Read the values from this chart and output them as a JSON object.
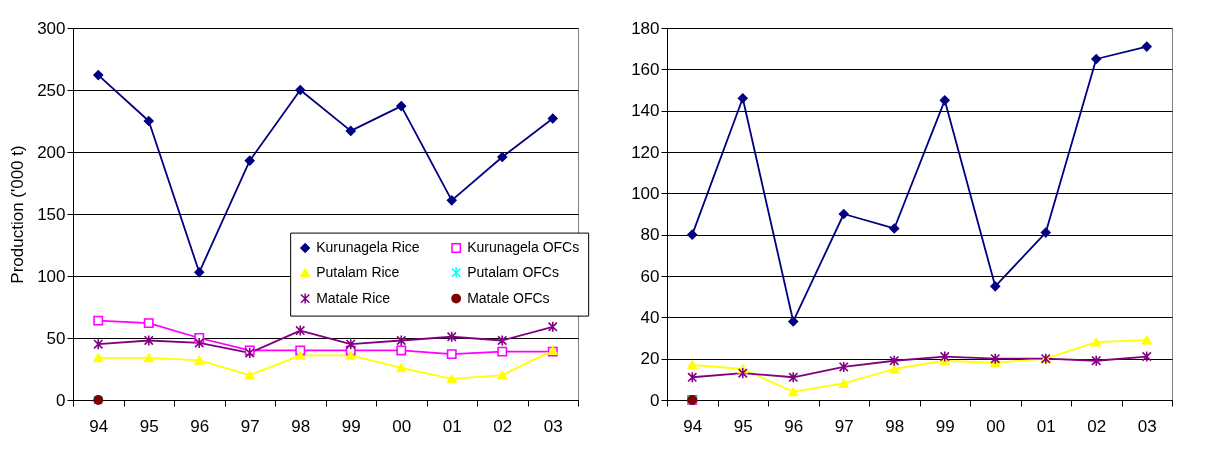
{
  "chart_data": [
    {
      "type": "line",
      "ylabel": "Production ('000 t)",
      "categories": [
        "94",
        "95",
        "96",
        "97",
        "98",
        "99",
        "00",
        "01",
        "02",
        "03"
      ],
      "ylim": [
        0,
        300
      ],
      "yticks": [
        0,
        50,
        100,
        150,
        200,
        250,
        300
      ],
      "grid": "y",
      "legend": "right",
      "series": [
        {
          "name": "Kurunagela Rice",
          "color": "#000080",
          "marker": "diamond",
          "values": [
            262,
            225,
            103,
            193,
            250,
            217,
            237,
            161,
            196,
            227
          ]
        },
        {
          "name": "Kurunagela OFCs",
          "color": "#ff00ff",
          "marker": "square",
          "values": [
            64,
            62,
            50,
            40,
            40,
            40,
            40,
            37,
            39,
            39
          ]
        },
        {
          "name": "Putalam Rice",
          "color": "#ffff00",
          "marker": "triangle",
          "values": [
            34,
            34,
            32,
            20,
            36,
            36,
            26,
            17,
            20,
            40
          ]
        },
        {
          "name": "Putalam OFCs",
          "color": "#00ffff",
          "marker": "cross",
          "values": [
            0,
            null,
            null,
            null,
            null,
            null,
            null,
            null,
            null,
            null
          ]
        },
        {
          "name": "Matale Rice",
          "color": "#800080",
          "marker": "cross",
          "values": [
            45,
            48,
            46,
            38,
            56,
            45,
            48,
            51,
            48,
            59
          ]
        },
        {
          "name": "Matale OFCs",
          "color": "#800000",
          "marker": "circle",
          "values": [
            0,
            null,
            null,
            null,
            null,
            null,
            null,
            null,
            null,
            null
          ]
        }
      ]
    },
    {
      "type": "line",
      "categories": [
        "94",
        "95",
        "96",
        "97",
        "98",
        "99",
        "00",
        "01",
        "02",
        "03"
      ],
      "ylim": [
        0,
        180
      ],
      "yticks": [
        0,
        20,
        40,
        60,
        80,
        100,
        120,
        140,
        160,
        180
      ],
      "grid": "y",
      "series": [
        {
          "color": "#000080",
          "marker": "diamond",
          "values": [
            80,
            146,
            38,
            90,
            83,
            145,
            55,
            81,
            165,
            171
          ]
        },
        {
          "color": "#ff00ff",
          "marker": "square",
          "values": [
            0,
            null,
            null,
            null,
            null,
            null,
            null,
            null,
            null,
            null
          ]
        },
        {
          "color": "#ffff00",
          "marker": "triangle",
          "values": [
            17,
            15,
            4,
            8,
            15,
            19,
            18,
            20,
            28,
            29
          ]
        },
        {
          "color": "#00ffff",
          "marker": "cross",
          "values": [
            0,
            null,
            null,
            null,
            null,
            null,
            null,
            null,
            null,
            null
          ]
        },
        {
          "color": "#800080",
          "marker": "cross",
          "values": [
            11,
            13,
            11,
            16,
            19,
            21,
            20,
            20,
            19,
            21
          ]
        },
        {
          "color": "#800000",
          "marker": "circle",
          "values": [
            0,
            null,
            null,
            null,
            null,
            null,
            null,
            null,
            null,
            null
          ]
        }
      ]
    }
  ]
}
